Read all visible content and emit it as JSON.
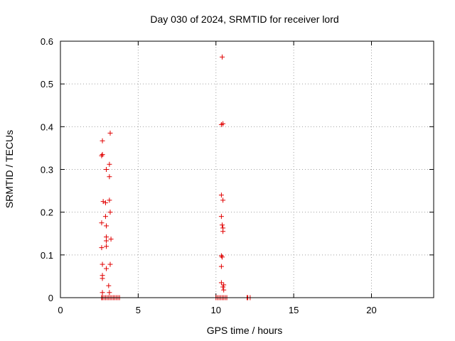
{
  "chart_data": {
    "type": "scatter",
    "title": "Day 030 of 2024, SRMTID for receiver lord",
    "xlabel": "GPS time / hours",
    "ylabel": "SRMTID / TECUs",
    "xlim": [
      0,
      24
    ],
    "ylim": [
      0,
      0.6
    ],
    "xticks": [
      0,
      5,
      10,
      15,
      20
    ],
    "xtick_labels": [
      "0",
      "5",
      "10",
      "15",
      "20"
    ],
    "yticks": [
      0,
      0.1,
      0.2,
      0.3,
      0.4,
      0.5,
      0.6
    ],
    "ytick_labels": [
      "0",
      "0.1",
      "0.2",
      "0.3",
      "0.4",
      "0.5",
      "0.6"
    ],
    "grid": true,
    "marker": "+",
    "marker_color": "#e00000",
    "series": [
      {
        "name": "SRMTID",
        "points": [
          [
            2.65,
            0.0
          ],
          [
            2.7,
            0.0
          ],
          [
            2.8,
            0.0
          ],
          [
            2.9,
            0.0
          ],
          [
            3.0,
            0.0
          ],
          [
            3.1,
            0.0
          ],
          [
            3.2,
            0.0
          ],
          [
            3.3,
            0.0
          ],
          [
            3.4,
            0.0
          ],
          [
            3.5,
            0.0
          ],
          [
            3.6,
            0.0
          ],
          [
            3.7,
            0.0
          ],
          [
            3.8,
            0.0
          ],
          [
            2.7,
            0.012
          ],
          [
            3.15,
            0.012
          ],
          [
            3.1,
            0.028
          ],
          [
            2.7,
            0.045
          ],
          [
            2.7,
            0.052
          ],
          [
            2.95,
            0.068
          ],
          [
            2.7,
            0.078
          ],
          [
            3.2,
            0.078
          ],
          [
            2.65,
            0.117
          ],
          [
            2.95,
            0.12
          ],
          [
            2.95,
            0.133
          ],
          [
            3.25,
            0.137
          ],
          [
            2.95,
            0.142
          ],
          [
            2.95,
            0.168
          ],
          [
            2.65,
            0.175
          ],
          [
            2.9,
            0.19
          ],
          [
            3.2,
            0.2
          ],
          [
            2.75,
            0.225
          ],
          [
            2.9,
            0.222
          ],
          [
            3.15,
            0.228
          ],
          [
            3.15,
            0.283
          ],
          [
            2.95,
            0.3
          ],
          [
            3.15,
            0.312
          ],
          [
            2.65,
            0.332
          ],
          [
            2.7,
            0.335
          ],
          [
            2.7,
            0.367
          ],
          [
            3.2,
            0.385
          ],
          [
            10.0,
            0.0
          ],
          [
            10.1,
            0.0
          ],
          [
            10.2,
            0.0
          ],
          [
            10.3,
            0.0
          ],
          [
            10.4,
            0.0
          ],
          [
            10.5,
            0.0
          ],
          [
            10.6,
            0.0
          ],
          [
            10.7,
            0.0
          ],
          [
            10.5,
            0.018
          ],
          [
            10.45,
            0.025
          ],
          [
            10.5,
            0.03
          ],
          [
            10.35,
            0.035
          ],
          [
            10.35,
            0.073
          ],
          [
            10.4,
            0.095
          ],
          [
            10.35,
            0.098
          ],
          [
            10.45,
            0.155
          ],
          [
            10.45,
            0.163
          ],
          [
            10.4,
            0.17
          ],
          [
            10.35,
            0.19
          ],
          [
            10.45,
            0.228
          ],
          [
            10.35,
            0.24
          ],
          [
            10.35,
            0.405
          ],
          [
            10.45,
            0.407
          ],
          [
            10.4,
            0.563
          ],
          [
            12.0,
            0.0
          ],
          [
            12.05,
            0.0
          ],
          [
            12.2,
            0.0
          ]
        ]
      }
    ]
  }
}
